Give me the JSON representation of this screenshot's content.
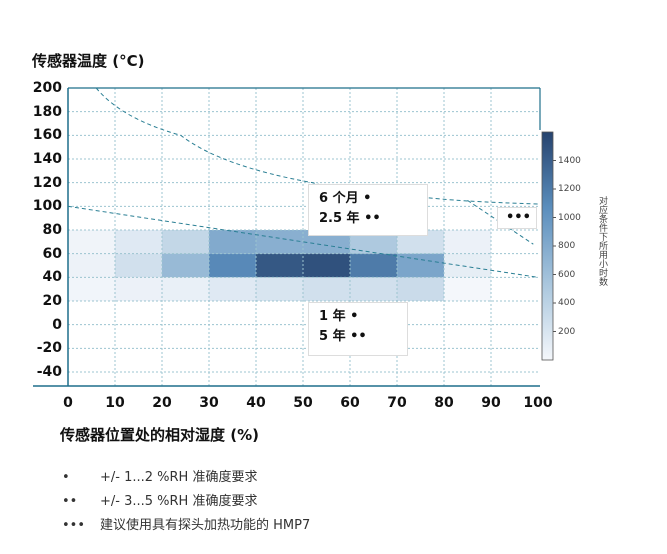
{
  "chart_data": {
    "type": "heatmap",
    "ylabel": "传感器温度 (°C)",
    "xlabel": "传感器位置处的相对湿度 (%)",
    "xlim": [
      0,
      100
    ],
    "ylim": [
      -40,
      200
    ],
    "xticks": [
      "0",
      "10",
      "20",
      "30",
      "40",
      "50",
      "60",
      "70",
      "80",
      "90",
      "100"
    ],
    "yticks": [
      "200",
      "180",
      "160",
      "140",
      "120",
      "100",
      "80",
      "60",
      "40",
      "20",
      "0",
      "-20",
      "-40"
    ],
    "grid": true,
    "x_bins": [
      10,
      20,
      30,
      40,
      50,
      60,
      70,
      80,
      90,
      100
    ],
    "y_bins": [
      [
        60,
        80
      ],
      [
        40,
        60
      ],
      [
        20,
        40
      ]
    ],
    "values": [
      [
        30,
        150,
        350,
        800,
        750,
        750,
        500,
        250,
        60
      ],
      [
        50,
        250,
        650,
        1100,
        1450,
        1500,
        1200,
        850,
        100
      ],
      [
        20,
        60,
        80,
        150,
        200,
        250,
        250,
        300,
        0
      ]
    ],
    "colorbar": {
      "label": "对应条件下所用小时数",
      "range": [
        0,
        1600
      ],
      "ticks": [
        "200",
        "400",
        "600",
        "800",
        "1000",
        "1200",
        "1400"
      ],
      "colors": [
        "#f4f7fb",
        "#a9c6dd",
        "#5b8ebd",
        "#26436e"
      ]
    },
    "lines": [
      {
        "style": "dashed",
        "color": "#2a7f94",
        "points": [
          [
            6,
            200
          ],
          [
            24,
            160
          ],
          [
            52,
            120
          ],
          [
            75,
            108
          ],
          [
            100,
            102
          ]
        ]
      },
      {
        "style": "dashed",
        "color": "#2a7f94",
        "points": [
          [
            85,
            105
          ],
          [
            99,
            68
          ]
        ]
      },
      {
        "style": "dashed",
        "color": "#2a7f94",
        "points": [
          [
            0,
            100
          ],
          [
            100,
            40
          ]
        ]
      }
    ],
    "annotations": [
      {
        "lines": [
          "6 个月 •",
          "2.5 年 ••"
        ]
      },
      {
        "lines": [
          "1 年 •",
          "5 年 ••"
        ]
      },
      {
        "lines": [
          "•••"
        ]
      }
    ],
    "legend": [
      {
        "marker": "•",
        "text": "+/- 1...2 %RH 准确度要求"
      },
      {
        "marker": "••",
        "text": "+/- 3...5 %RH 准确度要求"
      },
      {
        "marker": "•••",
        "text": "建议使用具有探头加热功能的 HMP7"
      }
    ]
  }
}
